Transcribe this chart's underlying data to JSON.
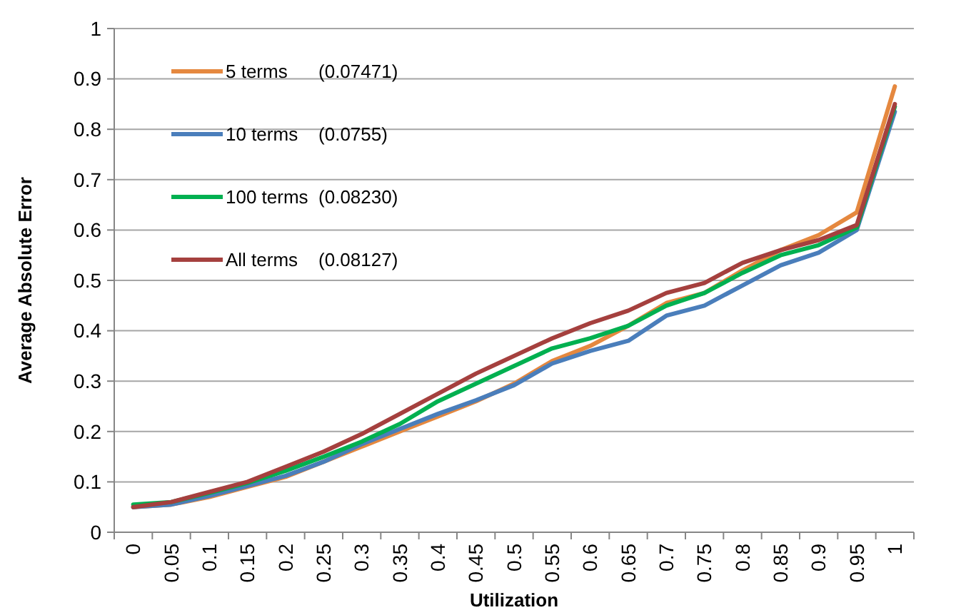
{
  "chart_data": {
    "type": "line",
    "xlabel": "Utilization",
    "ylabel": "Average Absolute Error",
    "categories": [
      "0",
      "0.05",
      "0.1",
      "0.15",
      "0.2",
      "0.25",
      "0.3",
      "0.35",
      "0.4",
      "0.45",
      "0.5",
      "0.55",
      "0.6",
      "0.65",
      "0.7",
      "0.75",
      "0.8",
      "0.85",
      "0.9",
      "0.95",
      "1"
    ],
    "series": [
      {
        "name": "5 terms      (0.07471)",
        "color": "#e5883f",
        "values": [
          0.05,
          0.055,
          0.07,
          0.09,
          0.11,
          0.14,
          0.17,
          0.2,
          0.23,
          0.26,
          0.295,
          0.34,
          0.37,
          0.41,
          0.455,
          0.475,
          0.52,
          0.56,
          0.59,
          0.635,
          0.885
        ]
      },
      {
        "name": "10 terms    (0.0755)",
        "color": "#4a7ebb",
        "values": [
          0.05,
          0.055,
          0.072,
          0.092,
          0.112,
          0.14,
          0.175,
          0.205,
          0.235,
          0.262,
          0.292,
          0.335,
          0.36,
          0.38,
          0.43,
          0.45,
          0.49,
          0.53,
          0.555,
          0.6,
          0.835
        ]
      },
      {
        "name": "100 terms  (0.08230)",
        "color": "#00b050",
        "values": [
          0.055,
          0.06,
          0.078,
          0.098,
          0.122,
          0.15,
          0.18,
          0.215,
          0.26,
          0.295,
          0.33,
          0.365,
          0.385,
          0.41,
          0.45,
          0.475,
          0.515,
          0.55,
          0.57,
          0.605,
          0.845
        ]
      },
      {
        "name": "All terms    (0.08127)",
        "color": "#a5403e",
        "values": [
          0.05,
          0.06,
          0.08,
          0.1,
          0.13,
          0.16,
          0.195,
          0.235,
          0.275,
          0.315,
          0.35,
          0.385,
          0.415,
          0.44,
          0.475,
          0.495,
          0.535,
          0.56,
          0.58,
          0.61,
          0.85
        ]
      }
    ],
    "ylim": [
      0,
      1
    ],
    "yticks": [
      0,
      0.1,
      0.2,
      0.3,
      0.4,
      0.5,
      0.6,
      0.7,
      0.8,
      0.9,
      1
    ],
    "grid": "y",
    "legend": "top left",
    "marker": "none",
    "line_style": "solid"
  }
}
